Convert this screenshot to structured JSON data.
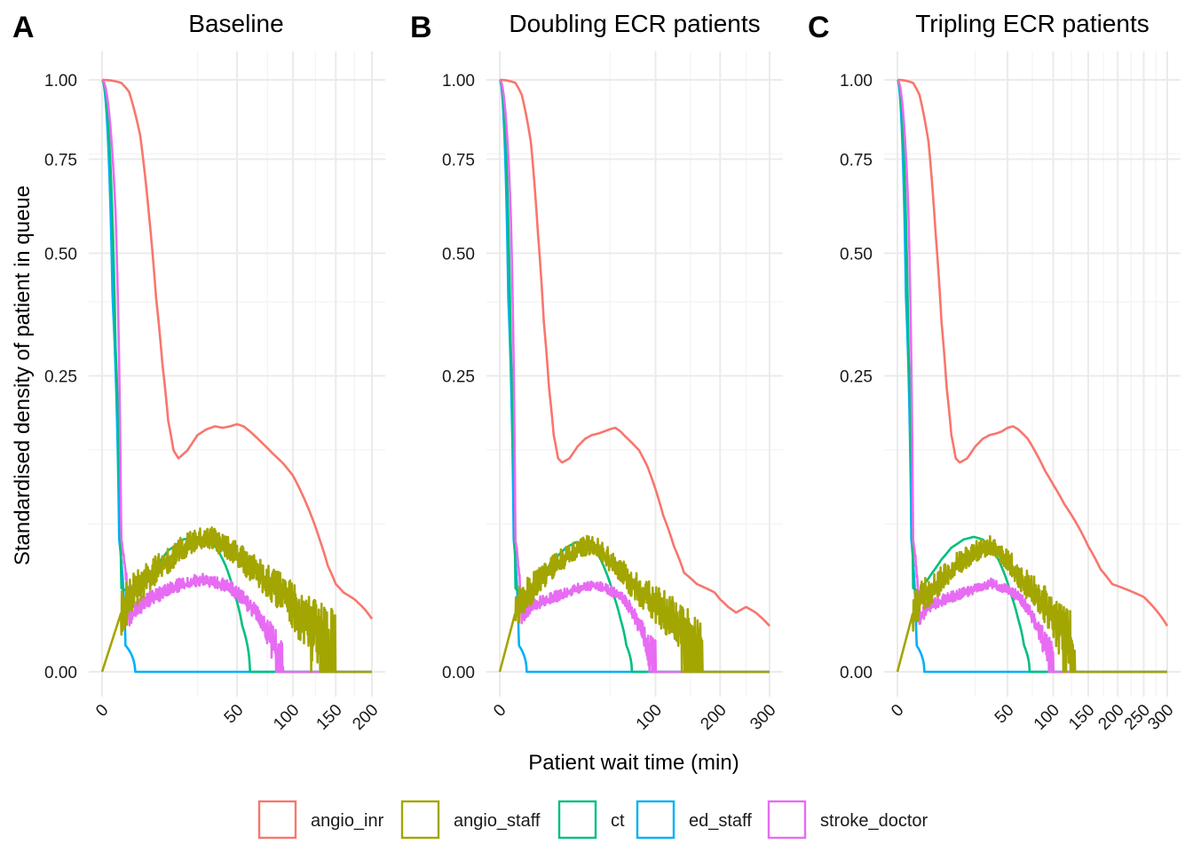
{
  "figure": {
    "xlabel": "Patient wait time (min)",
    "ylabel": "Standardised density of patient in queue",
    "legend": {
      "items": [
        {
          "label": "angio_inr",
          "color": "#F8766D"
        },
        {
          "label": "angio_staff",
          "color": "#A3A500"
        },
        {
          "label": "ct",
          "color": "#00BF7D"
        },
        {
          "label": "ed_staff",
          "color": "#00B0F6"
        },
        {
          "label": "stroke_doctor",
          "color": "#E76BF3"
        }
      ]
    }
  },
  "chart_data": [
    {
      "type": "line",
      "tag": "A",
      "title": "Baseline",
      "xlim": [
        0,
        200
      ],
      "x_ticks": [
        0,
        50,
        100,
        150,
        200
      ],
      "y_ticks": [
        0,
        0.25,
        0.5,
        0.75,
        1.0
      ],
      "y_tick_labels": [
        "0.00",
        "0.25",
        "0.50",
        "0.75",
        "1.00"
      ],
      "series": [
        {
          "name": "angio_inr",
          "color": "#F8766D",
          "x": [
            0,
            1,
            2,
            4,
            6,
            8,
            10,
            12,
            14,
            16,
            20,
            25,
            30,
            35,
            40,
            45,
            50,
            55,
            60,
            70,
            80,
            90,
            100,
            110,
            120,
            130,
            140,
            150,
            160,
            175,
            190,
            200
          ],
          "y": [
            1.0,
            0.99,
            0.96,
            0.82,
            0.6,
            0.4,
            0.27,
            0.18,
            0.14,
            0.13,
            0.14,
            0.16,
            0.168,
            0.172,
            0.17,
            0.172,
            0.175,
            0.172,
            0.165,
            0.15,
            0.136,
            0.124,
            0.11,
            0.09,
            0.07,
            0.05,
            0.032,
            0.022,
            0.018,
            0.015,
            0.011,
            0.008
          ]
        },
        {
          "name": "angio_staff",
          "color": "#A3A500",
          "x": [
            0,
            1,
            3,
            6,
            10,
            15,
            20,
            25,
            30,
            35,
            40,
            45,
            50,
            55,
            60,
            65,
            70,
            75,
            80,
            90,
            100,
            110,
            120,
            130,
            140,
            150,
            200
          ],
          "y": [
            0.0,
            0.01,
            0.018,
            0.025,
            0.032,
            0.038,
            0.045,
            0.048,
            0.05,
            0.048,
            0.045,
            0.04,
            0.038,
            0.034,
            0.03,
            0.028,
            0.025,
            0.022,
            0.02,
            0.016,
            0.012,
            0.008,
            0.006,
            0.003,
            0.001,
            0.0,
            0.0
          ],
          "noise": 0.011,
          "end": 150
        },
        {
          "name": "ct",
          "color": "#00BF7D",
          "x": [
            0,
            0.5,
            1,
            2,
            3,
            5,
            8,
            12,
            18,
            24,
            30,
            36,
            42,
            48,
            54,
            60,
            200
          ],
          "y": [
            1.0,
            0.3,
            0.02,
            0.018,
            0.02,
            0.025,
            0.032,
            0.042,
            0.05,
            0.052,
            0.05,
            0.044,
            0.032,
            0.018,
            0.006,
            0.0,
            0.0
          ]
        },
        {
          "name": "ed_staff",
          "color": "#00B0F6",
          "x": [
            0,
            0.3,
            0.8,
            1.5,
            3,
            200
          ],
          "y": [
            1.0,
            0.4,
            0.05,
            0.002,
            0.0,
            0.0
          ]
        },
        {
          "name": "stroke_doctor",
          "color": "#E76BF3",
          "x": [
            0,
            0.5,
            1,
            2,
            4,
            8,
            14,
            20,
            28,
            36,
            44,
            52,
            60,
            68,
            76,
            84,
            90,
            200
          ],
          "y": [
            1.0,
            0.6,
            0.05,
            0.008,
            0.012,
            0.016,
            0.02,
            0.022,
            0.024,
            0.022,
            0.02,
            0.016,
            0.012,
            0.008,
            0.004,
            0.001,
            0.0,
            0.0
          ],
          "noise": 0.004,
          "end": 90
        }
      ]
    },
    {
      "type": "line",
      "tag": "B",
      "title": "Doubling ECR patients",
      "xlim": [
        0,
        300
      ],
      "x_ticks": [
        0,
        100,
        200,
        300
      ],
      "y_ticks": [
        0,
        0.25,
        0.5,
        0.75,
        1.0
      ],
      "y_tick_labels": [
        "0.00",
        "0.25",
        "0.50",
        "0.75",
        "1.00"
      ],
      "series": [
        {
          "name": "angio_inr",
          "color": "#F8766D",
          "x": [
            0,
            1,
            2,
            4,
            6,
            8,
            10,
            12,
            14,
            16,
            20,
            25,
            30,
            35,
            40,
            45,
            50,
            55,
            60,
            65,
            70,
            80,
            90,
            100,
            110,
            125,
            140,
            160,
            175,
            190,
            200,
            215,
            230,
            250,
            270,
            285,
            300
          ],
          "y": [
            1.0,
            0.99,
            0.95,
            0.8,
            0.55,
            0.35,
            0.23,
            0.16,
            0.13,
            0.125,
            0.13,
            0.145,
            0.155,
            0.16,
            0.162,
            0.165,
            0.168,
            0.17,
            0.165,
            0.158,
            0.152,
            0.14,
            0.12,
            0.095,
            0.07,
            0.045,
            0.028,
            0.022,
            0.02,
            0.018,
            0.015,
            0.012,
            0.01,
            0.012,
            0.01,
            0.008,
            0.006
          ]
        },
        {
          "name": "angio_staff",
          "color": "#A3A500",
          "x": [
            0,
            1,
            3,
            6,
            10,
            15,
            20,
            25,
            30,
            35,
            40,
            45,
            50,
            55,
            60,
            65,
            70,
            75,
            80,
            90,
            100,
            110,
            120,
            130,
            140,
            150,
            160,
            170,
            300
          ],
          "y": [
            0.0,
            0.01,
            0.016,
            0.022,
            0.028,
            0.034,
            0.038,
            0.042,
            0.044,
            0.043,
            0.042,
            0.038,
            0.034,
            0.03,
            0.028,
            0.025,
            0.022,
            0.02,
            0.018,
            0.015,
            0.012,
            0.01,
            0.008,
            0.006,
            0.004,
            0.002,
            0.001,
            0.0,
            0.0
          ],
          "noise": 0.009,
          "end": 170
        },
        {
          "name": "ct",
          "color": "#00BF7D",
          "x": [
            0,
            0.5,
            1,
            2,
            3,
            5,
            8,
            12,
            18,
            24,
            30,
            36,
            42,
            48,
            54,
            60,
            66,
            72,
            300
          ],
          "y": [
            1.0,
            0.3,
            0.02,
            0.016,
            0.018,
            0.022,
            0.028,
            0.036,
            0.044,
            0.048,
            0.048,
            0.044,
            0.036,
            0.026,
            0.016,
            0.008,
            0.002,
            0.0,
            0.0
          ]
        },
        {
          "name": "ed_staff",
          "color": "#00B0F6",
          "x": [
            0,
            0.3,
            0.8,
            1.5,
            3,
            300
          ],
          "y": [
            1.0,
            0.4,
            0.05,
            0.002,
            0.0,
            0.0
          ]
        },
        {
          "name": "stroke_doctor",
          "color": "#E76BF3",
          "x": [
            0,
            0.5,
            1,
            2,
            4,
            8,
            14,
            20,
            28,
            36,
            44,
            52,
            60,
            68,
            76,
            84,
            92,
            100,
            300
          ],
          "y": [
            1.0,
            0.6,
            0.05,
            0.008,
            0.012,
            0.014,
            0.016,
            0.018,
            0.02,
            0.021,
            0.02,
            0.018,
            0.016,
            0.012,
            0.008,
            0.004,
            0.001,
            0.0,
            0.0
          ],
          "noise": 0.003,
          "end": 100
        }
      ]
    },
    {
      "type": "line",
      "tag": "C",
      "title": "Tripling ECR patients",
      "xlim": [
        0,
        300
      ],
      "x_ticks": [
        0,
        50,
        100,
        150,
        200,
        250,
        300
      ],
      "y_ticks": [
        0,
        0.25,
        0.5,
        0.75,
        1.0
      ],
      "y_tick_labels": [
        "0.00",
        "0.25",
        "0.50",
        "0.75",
        "1.00"
      ],
      "series": [
        {
          "name": "angio_inr",
          "color": "#F8766D",
          "x": [
            0,
            1,
            2,
            4,
            6,
            8,
            10,
            12,
            14,
            16,
            20,
            25,
            30,
            35,
            40,
            45,
            50,
            55,
            60,
            70,
            80,
            90,
            100,
            115,
            130,
            150,
            170,
            190,
            210,
            230,
            250,
            270,
            290,
            300
          ],
          "y": [
            1.0,
            0.99,
            0.95,
            0.8,
            0.55,
            0.35,
            0.23,
            0.16,
            0.13,
            0.125,
            0.13,
            0.145,
            0.155,
            0.16,
            0.162,
            0.165,
            0.17,
            0.172,
            0.168,
            0.155,
            0.135,
            0.115,
            0.1,
            0.08,
            0.065,
            0.045,
            0.03,
            0.022,
            0.02,
            0.018,
            0.016,
            0.012,
            0.008,
            0.006
          ]
        },
        {
          "name": "angio_staff",
          "color": "#A3A500",
          "x": [
            0,
            1,
            3,
            6,
            10,
            15,
            20,
            25,
            30,
            35,
            40,
            45,
            50,
            55,
            60,
            65,
            70,
            75,
            80,
            90,
            100,
            110,
            120,
            130,
            300
          ],
          "y": [
            0.0,
            0.01,
            0.016,
            0.02,
            0.026,
            0.032,
            0.036,
            0.04,
            0.042,
            0.044,
            0.042,
            0.038,
            0.034,
            0.03,
            0.026,
            0.022,
            0.02,
            0.018,
            0.016,
            0.012,
            0.008,
            0.005,
            0.003,
            0.0,
            0.0
          ],
          "noise": 0.009,
          "end": 130
        },
        {
          "name": "ct",
          "color": "#00BF7D",
          "x": [
            0,
            0.5,
            1,
            2,
            3,
            5,
            8,
            12,
            18,
            24,
            30,
            36,
            42,
            48,
            54,
            60,
            66,
            72,
            300
          ],
          "y": [
            1.0,
            0.3,
            0.02,
            0.018,
            0.022,
            0.028,
            0.036,
            0.044,
            0.05,
            0.052,
            0.05,
            0.044,
            0.036,
            0.026,
            0.016,
            0.008,
            0.002,
            0.0,
            0.0
          ]
        },
        {
          "name": "ed_staff",
          "color": "#00B0F6",
          "x": [
            0,
            0.3,
            0.8,
            1.5,
            3,
            300
          ],
          "y": [
            1.0,
            0.4,
            0.05,
            0.002,
            0.0,
            0.0
          ]
        },
        {
          "name": "stroke_doctor",
          "color": "#E76BF3",
          "x": [
            0,
            0.5,
            1,
            2,
            4,
            8,
            14,
            20,
            28,
            36,
            44,
            52,
            60,
            68,
            76,
            84,
            92,
            100,
            300
          ],
          "y": [
            1.0,
            0.6,
            0.05,
            0.008,
            0.012,
            0.014,
            0.016,
            0.018,
            0.02,
            0.022,
            0.02,
            0.018,
            0.016,
            0.012,
            0.008,
            0.004,
            0.001,
            0.0,
            0.0
          ],
          "noise": 0.003,
          "end": 100
        }
      ]
    }
  ]
}
